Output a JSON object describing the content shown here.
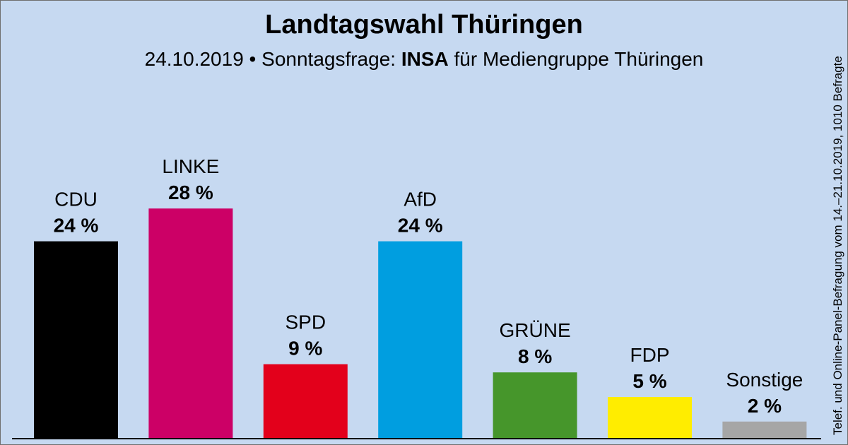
{
  "chart_data": {
    "type": "bar",
    "title": "Landtagswahl Thüringen",
    "subtitle": {
      "date": "24.10.2019",
      "separator": "•",
      "label": "Sonntagsfrage:",
      "pollster": "INSA",
      "client": "für Mediengruppe Thüringen"
    },
    "source_note": "Telef. und Online-Panel-Befragung vom 14.–21.10.2019, 1010 Befragte",
    "categories": [
      "CDU",
      "LINKE",
      "SPD",
      "AfD",
      "GRÜNE",
      "FDP",
      "Sonstige"
    ],
    "values": [
      24,
      28,
      9,
      24,
      8,
      5,
      2
    ],
    "value_labels": [
      "24 %",
      "28 %",
      "9 %",
      "24 %",
      "8 %",
      "5 %",
      "2 %"
    ],
    "colors": [
      "#000000",
      "#cc0066",
      "#e3001b",
      "#009ee0",
      "#46962b",
      "#ffed00",
      "#a6a6a6"
    ],
    "unit": "%",
    "ylim": [
      0,
      28
    ],
    "grid": false,
    "legend": "none"
  }
}
